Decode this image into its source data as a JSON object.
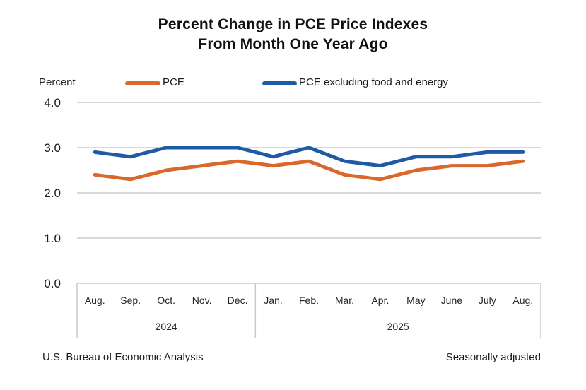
{
  "chart": {
    "title_line1": "Percent Change in PCE Price Indexes",
    "title_line2": "From Month One Year Ago",
    "y_axis_title": "Percent"
  },
  "footer": {
    "source": "U.S. Bureau of Economic Analysis",
    "note": "Seasonally adjusted"
  },
  "colors": {
    "pce": "#D9682A",
    "core_pce": "#1F5AA5",
    "gridline": "#D9D9D9",
    "axis_box": "#C9C9C9",
    "tick_text": "#1A1A1A",
    "month_text": "#262626"
  },
  "chart_data": {
    "type": "line",
    "title": "Percent Change in PCE Price Indexes From Month One Year Ago",
    "xlabel": "",
    "ylabel": "Percent",
    "ylim": [
      0.0,
      4.0
    ],
    "yticks": [
      0.0,
      1.0,
      2.0,
      3.0,
      4.0
    ],
    "ytick_labels": [
      "0.0",
      "1.0",
      "2.0",
      "3.0",
      "4.0"
    ],
    "grid": true,
    "legend_position": "top",
    "categories": [
      "Aug.",
      "Sep.",
      "Oct.",
      "Nov.",
      "Dec.",
      "Jan.",
      "Feb.",
      "Mar.",
      "Apr.",
      "May",
      "June",
      "July",
      "Aug."
    ],
    "x_groups": [
      {
        "label": "2024",
        "count": 5
      },
      {
        "label": "2025",
        "count": 8
      }
    ],
    "series": [
      {
        "name": "PCE",
        "color": "#D9682A",
        "values": [
          2.4,
          2.3,
          2.5,
          2.6,
          2.7,
          2.6,
          2.7,
          2.4,
          2.3,
          2.5,
          2.6,
          2.6,
          2.7
        ]
      },
      {
        "name": "PCE excluding food and energy",
        "color": "#1F5AA5",
        "values": [
          2.9,
          2.8,
          3.0,
          3.0,
          3.0,
          2.8,
          3.0,
          2.7,
          2.6,
          2.8,
          2.8,
          2.9,
          2.9
        ]
      }
    ],
    "annotations": [
      "Seasonally adjusted"
    ]
  }
}
